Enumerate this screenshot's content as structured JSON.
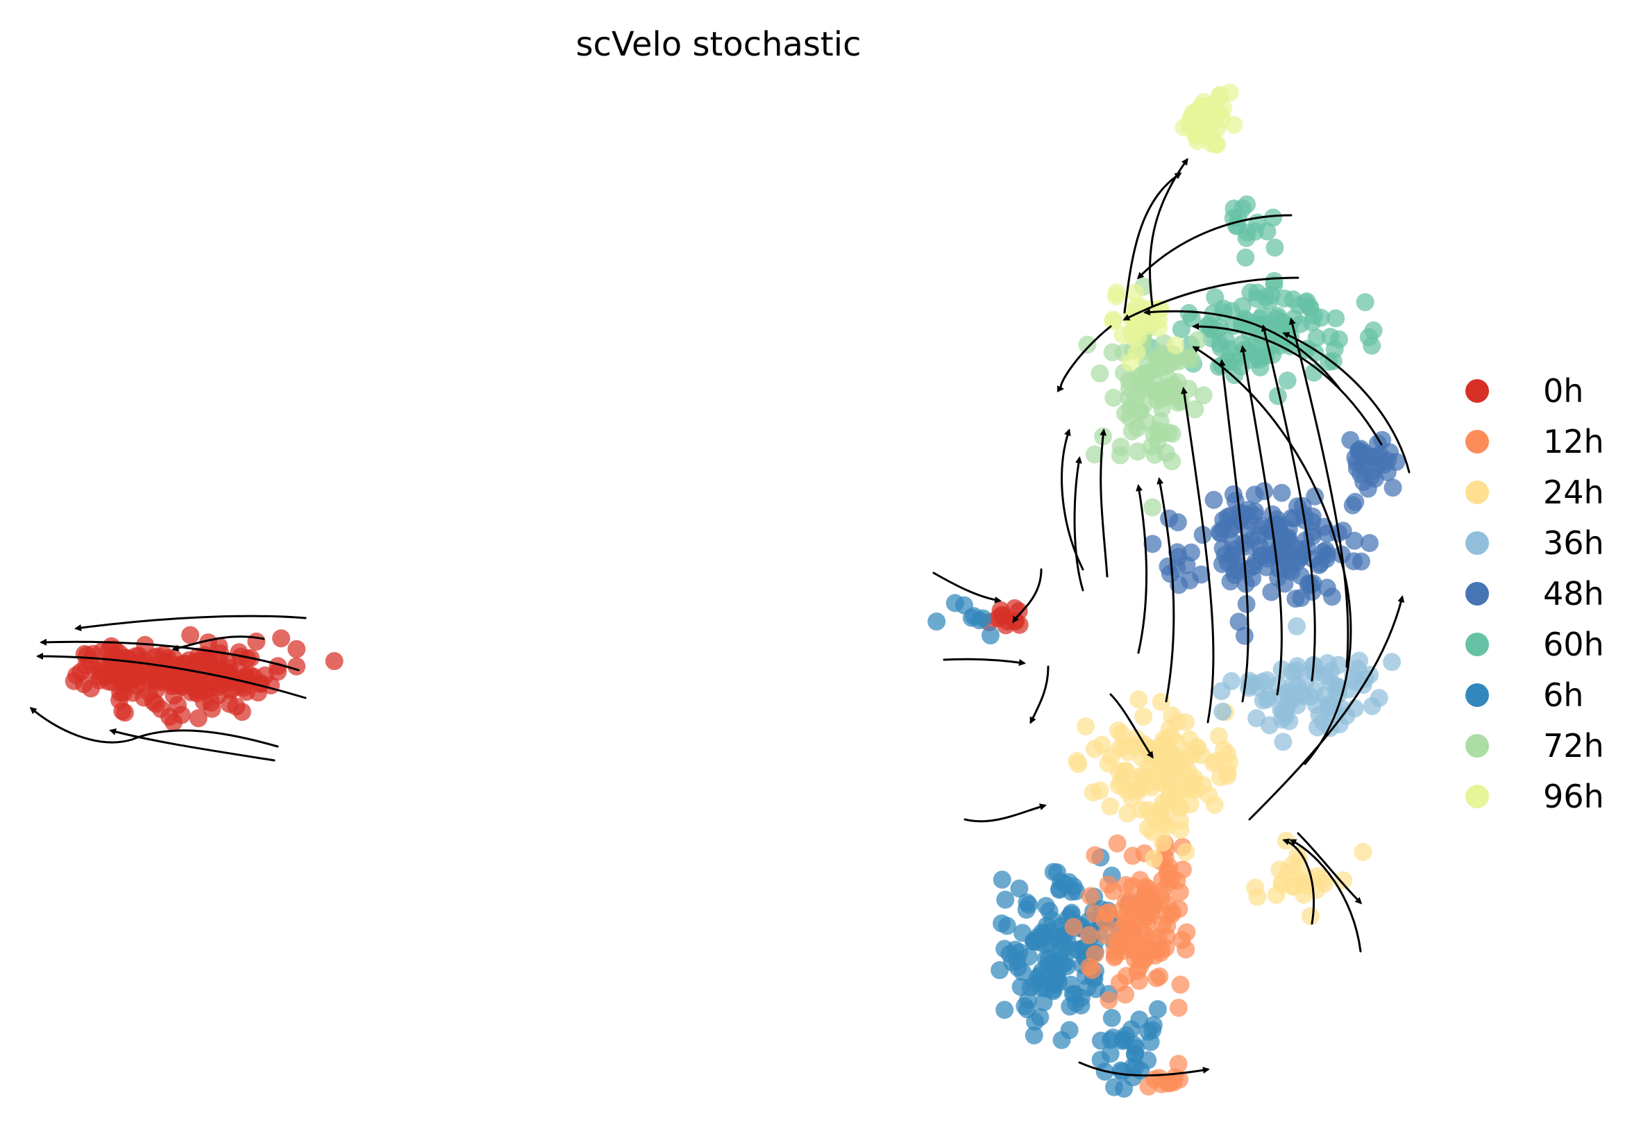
{
  "chart_data": {
    "type": "scatter",
    "title": "scVelo stochastic",
    "xlabel": "",
    "ylabel": "",
    "axes_visible": false,
    "grid": false,
    "legend_position": "right",
    "overlay": "velocity streamlines with arrowheads",
    "series": [
      {
        "name": "0h",
        "color": "#d73027"
      },
      {
        "name": "12h",
        "color": "#fc8d59"
      },
      {
        "name": "24h",
        "color": "#fee090"
      },
      {
        "name": "36h",
        "color": "#91bfdb"
      },
      {
        "name": "48h",
        "color": "#4575b4"
      },
      {
        "name": "60h",
        "color": "#66c2a5"
      },
      {
        "name": "6h",
        "color": "#3288bd"
      },
      {
        "name": "72h",
        "color": "#abdda4"
      },
      {
        "name": "96h",
        "color": "#e6f598"
      }
    ]
  }
}
